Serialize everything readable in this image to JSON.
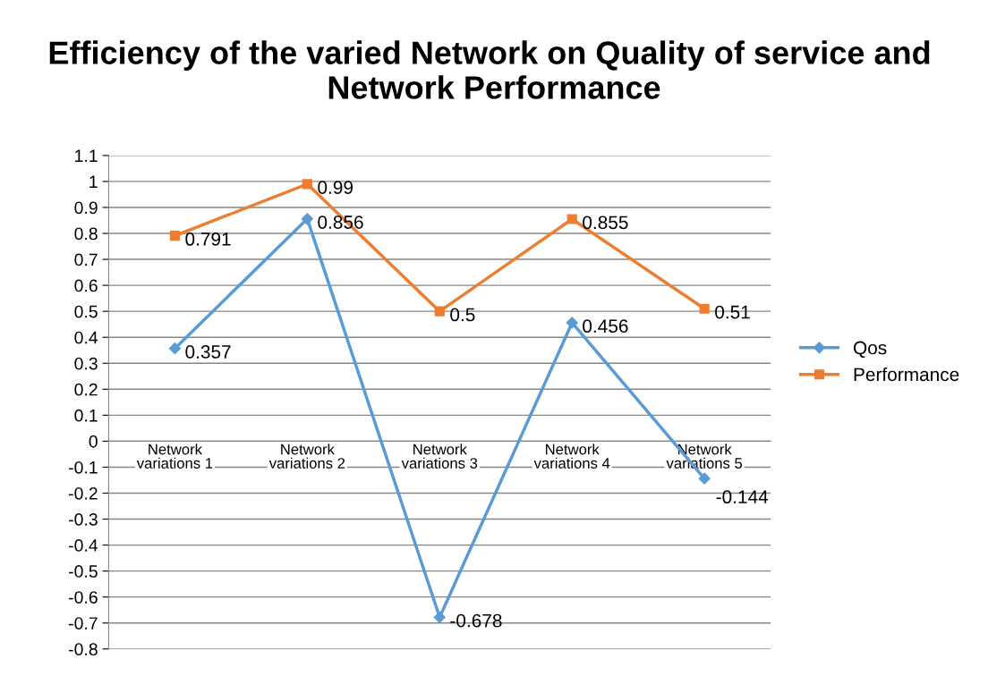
{
  "chart_data": {
    "type": "line",
    "title": "Efficiency of the varied Network on Quality of service and  Network Performance",
    "categories": [
      "Network variations 1",
      "Network variations 2",
      "Network variations 3",
      "Network variations 4",
      "Network variations 5"
    ],
    "series": [
      {
        "name": "Qos",
        "color": "#5b9bd5",
        "marker": "diamond",
        "values": [
          0.357,
          0.856,
          -0.678,
          0.456,
          -0.144
        ]
      },
      {
        "name": "Performance",
        "color": "#ed7d31",
        "marker": "square",
        "values": [
          0.791,
          0.99,
          0.5,
          0.855,
          0.51
        ]
      }
    ],
    "ylim": [
      -0.8,
      1.1
    ],
    "yticks": [
      -0.8,
      -0.7,
      -0.6,
      -0.5,
      -0.4,
      -0.3,
      -0.2,
      -0.1,
      0,
      0.1,
      0.2,
      0.3,
      0.4,
      0.5,
      0.6,
      0.7,
      0.8,
      0.9,
      1,
      1.1
    ],
    "grid": "y",
    "legend": "right",
    "data_labels": true,
    "line_style": "solid"
  }
}
